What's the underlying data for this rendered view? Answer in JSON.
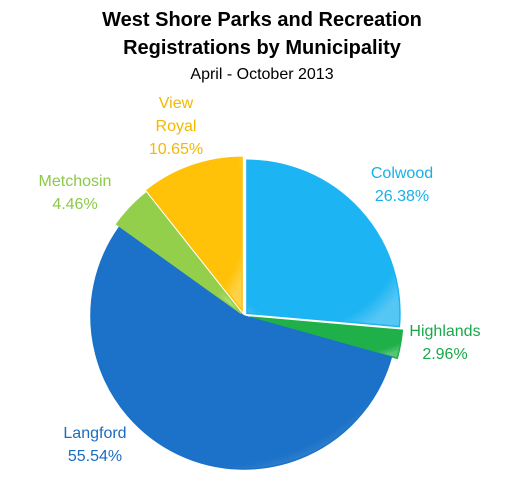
{
  "chart_data": {
    "type": "pie",
    "title": "West Shore Parks and Recreation Registrations by Municipality",
    "subtitle": "April - October 2013",
    "categories": [
      "Colwood",
      "Highlands",
      "Langford",
      "Metchosin",
      "View Royal"
    ],
    "values": [
      26.38,
      2.96,
      55.54,
      4.46,
      10.65
    ],
    "value_labels": [
      "26.38%",
      "2.96%",
      "55.54%",
      "4.46%",
      "10.65%"
    ],
    "colors": [
      "#1cb4f2",
      "#20b04a",
      "#1b72c8",
      "#94cf4c",
      "#ffc208"
    ],
    "label_colors": [
      "#18b0e8",
      "#1aa84a",
      "#1a6cc0",
      "#8cc84a",
      "#f4b800"
    ]
  }
}
